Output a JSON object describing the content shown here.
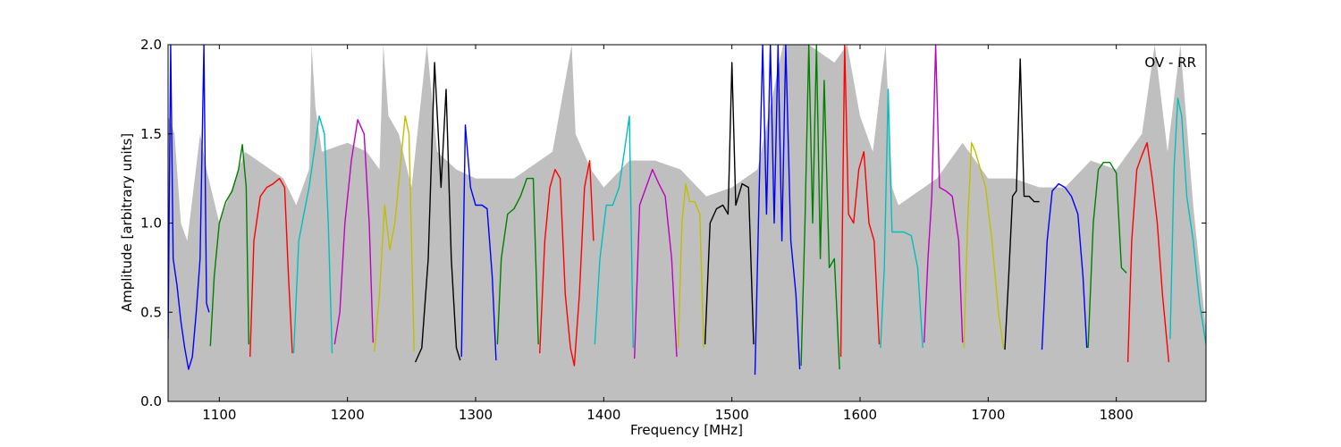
{
  "chart_data": {
    "type": "line",
    "title": "",
    "annotation": "OV - RR",
    "xlabel": "Frequency [MHz]",
    "ylabel": "Amplitude [arbitrary units]",
    "xlim": [
      1060,
      1870
    ],
    "ylim": [
      0.0,
      2.0
    ],
    "xticks": [
      {
        "value": 1100,
        "label": "1100"
      },
      {
        "value": 1200,
        "label": "1200"
      },
      {
        "value": 1300,
        "label": "1300"
      },
      {
        "value": 1400,
        "label": "1400"
      },
      {
        "value": 1500,
        "label": "1500"
      },
      {
        "value": 1600,
        "label": "1600"
      },
      {
        "value": 1700,
        "label": "1700"
      },
      {
        "value": 1800,
        "label": "1800"
      }
    ],
    "yticks": [
      {
        "value": 0.0,
        "label": "0.0"
      },
      {
        "value": 0.5,
        "label": "0.5"
      },
      {
        "value": 1.0,
        "label": "1.0"
      },
      {
        "value": 1.5,
        "label": "1.5"
      },
      {
        "value": 2.0,
        "label": "2.0"
      }
    ],
    "grid": false,
    "background_color": "#bfbfbf",
    "series": [
      {
        "color": "#0000ff",
        "x": [
          1060,
          1062,
          1064,
          1067,
          1070,
          1073,
          1076,
          1079,
          1082,
          1085,
          1088,
          1090,
          1092
        ],
        "y": [
          0.35,
          2.0,
          0.8,
          0.65,
          0.45,
          0.3,
          0.18,
          0.25,
          0.5,
          0.8,
          2.0,
          0.55,
          0.5
        ]
      },
      {
        "color": "#008000",
        "x": [
          1093,
          1096,
          1100,
          1105,
          1110,
          1115,
          1118,
          1121,
          1123
        ],
        "y": [
          0.31,
          0.7,
          1.0,
          1.12,
          1.18,
          1.3,
          1.44,
          1.2,
          0.32
        ]
      },
      {
        "color": "#ff0000",
        "x": [
          1124,
          1127,
          1132,
          1137,
          1142,
          1147,
          1151,
          1154,
          1157
        ],
        "y": [
          0.25,
          0.9,
          1.15,
          1.2,
          1.22,
          1.25,
          1.2,
          0.7,
          0.27
        ]
      },
      {
        "color": "#00bfbf",
        "x": [
          1158,
          1162,
          1166,
          1170,
          1174,
          1178,
          1182,
          1185,
          1188
        ],
        "y": [
          0.27,
          0.9,
          1.05,
          1.2,
          1.4,
          1.6,
          1.5,
          1.0,
          0.27
        ]
      },
      {
        "color": "#bf00bf",
        "x": [
          1190,
          1194,
          1198,
          1203,
          1208,
          1213,
          1217,
          1220
        ],
        "y": [
          0.32,
          0.5,
          1.0,
          1.35,
          1.58,
          1.5,
          1.0,
          0.33
        ]
      },
      {
        "color": "#bfbf00",
        "x": [
          1221,
          1225,
          1229,
          1233,
          1237,
          1241,
          1245,
          1248,
          1252
        ],
        "y": [
          0.28,
          0.6,
          1.1,
          0.85,
          1.0,
          1.3,
          1.6,
          1.5,
          0.28
        ]
      },
      {
        "color": "#000000",
        "x": [
          1253,
          1258,
          1263,
          1268,
          1273,
          1277,
          1281,
          1285,
          1288
        ],
        "y": [
          0.22,
          0.3,
          0.8,
          1.9,
          1.2,
          1.75,
          0.8,
          0.3,
          0.23
        ]
      },
      {
        "color": "#0000ff",
        "x": [
          1289,
          1292,
          1296,
          1300,
          1305,
          1309,
          1313,
          1316
        ],
        "y": [
          0.25,
          1.55,
          1.2,
          1.1,
          1.1,
          1.08,
          0.7,
          0.23
        ]
      },
      {
        "color": "#008000",
        "x": [
          1317,
          1320,
          1325,
          1330,
          1335,
          1340,
          1345,
          1349
        ],
        "y": [
          0.32,
          0.8,
          1.05,
          1.08,
          1.15,
          1.25,
          1.25,
          0.32
        ]
      },
      {
        "color": "#ff0000",
        "x": [
          1350,
          1354,
          1358,
          1362,
          1366,
          1370,
          1374,
          1377,
          1381,
          1385,
          1389,
          1392
        ],
        "y": [
          0.27,
          0.9,
          1.2,
          1.3,
          1.25,
          0.6,
          0.3,
          0.2,
          0.6,
          1.2,
          1.35,
          0.9
        ]
      },
      {
        "color": "#00bfbf",
        "x": [
          1393,
          1397,
          1402,
          1407,
          1412,
          1416,
          1420,
          1423
        ],
        "y": [
          0.32,
          0.8,
          1.1,
          1.1,
          1.2,
          1.4,
          1.6,
          0.3
        ]
      },
      {
        "color": "#bf00bf",
        "x": [
          1424,
          1428,
          1433,
          1438,
          1443,
          1448,
          1453,
          1457
        ],
        "y": [
          0.24,
          1.1,
          1.2,
          1.3,
          1.22,
          1.15,
          0.8,
          0.25
        ]
      },
      {
        "color": "#bfbf00",
        "x": [
          1458,
          1461,
          1464,
          1467,
          1471,
          1475,
          1478
        ],
        "y": [
          0.3,
          1.0,
          1.22,
          1.12,
          1.12,
          1.05,
          0.3
        ]
      },
      {
        "color": "#000000",
        "x": [
          1479,
          1483,
          1488,
          1493,
          1497,
          1500,
          1503,
          1508,
          1513,
          1517
        ],
        "y": [
          0.32,
          1.0,
          1.08,
          1.1,
          1.05,
          1.9,
          1.1,
          1.22,
          1.2,
          0.32
        ]
      },
      {
        "color": "#0000ff",
        "x": [
          1518,
          1521,
          1524,
          1527,
          1530,
          1533,
          1536,
          1539,
          1542,
          1546,
          1550,
          1553
        ],
        "y": [
          0.15,
          1.1,
          2.0,
          1.05,
          2.0,
          1.0,
          2.0,
          0.9,
          2.0,
          0.9,
          0.6,
          0.18
        ]
      },
      {
        "color": "#008000",
        "x": [
          1554,
          1557,
          1560,
          1563,
          1566,
          1569,
          1572,
          1576,
          1580,
          1584
        ],
        "y": [
          0.2,
          1.0,
          2.0,
          1.0,
          2.0,
          0.8,
          1.8,
          0.75,
          0.8,
          0.18
        ]
      },
      {
        "color": "#ff0000",
        "x": [
          1585,
          1588,
          1591,
          1595,
          1599,
          1603,
          1607,
          1611,
          1615
        ],
        "y": [
          0.25,
          2.0,
          1.05,
          1.0,
          1.3,
          1.4,
          1.0,
          0.9,
          0.32
        ]
      },
      {
        "color": "#00bfbf",
        "x": [
          1616,
          1619,
          1622,
          1625,
          1629,
          1634,
          1640,
          1645,
          1649
        ],
        "y": [
          0.3,
          0.75,
          1.75,
          0.95,
          0.95,
          0.95,
          0.93,
          0.75,
          0.3
        ]
      },
      {
        "color": "#bf00bf",
        "x": [
          1650,
          1653,
          1656,
          1659,
          1662,
          1667,
          1672,
          1677,
          1680
        ],
        "y": [
          0.33,
          0.8,
          1.15,
          2.0,
          1.2,
          1.18,
          1.15,
          0.9,
          0.33
        ]
      },
      {
        "color": "#bfbf00",
        "x": [
          1681,
          1684,
          1687,
          1690,
          1694,
          1698,
          1703,
          1708,
          1712
        ],
        "y": [
          0.3,
          1.0,
          1.45,
          1.4,
          1.3,
          1.2,
          0.9,
          0.5,
          0.3
        ]
      },
      {
        "color": "#000000",
        "x": [
          1713,
          1716,
          1719,
          1722,
          1725,
          1728,
          1732,
          1736,
          1740
        ],
        "y": [
          0.29,
          0.7,
          1.15,
          1.18,
          1.92,
          1.15,
          1.15,
          1.12,
          1.12
        ]
      },
      {
        "color": "#0000ff",
        "x": [
          1742,
          1746,
          1750,
          1755,
          1760,
          1765,
          1770,
          1774,
          1777
        ],
        "y": [
          0.29,
          0.9,
          1.18,
          1.22,
          1.2,
          1.15,
          1.05,
          0.7,
          0.3
        ]
      },
      {
        "color": "#008000",
        "x": [
          1778,
          1782,
          1786,
          1790,
          1795,
          1800,
          1804,
          1808
        ],
        "y": [
          0.3,
          1.0,
          1.3,
          1.34,
          1.34,
          1.28,
          0.75,
          0.72
        ]
      },
      {
        "color": "#ff0000",
        "x": [
          1809,
          1812,
          1816,
          1820,
          1824,
          1828,
          1832,
          1836,
          1841
        ],
        "y": [
          0.22,
          0.9,
          1.3,
          1.38,
          1.45,
          1.25,
          1.0,
          0.6,
          0.22
        ]
      },
      {
        "color": "#00bfbf",
        "x": [
          1842,
          1845,
          1848,
          1851,
          1855,
          1860,
          1865,
          1870
        ],
        "y": [
          0.35,
          1.3,
          1.7,
          1.6,
          1.15,
          0.9,
          0.55,
          0.32
        ]
      }
    ],
    "background_envelope": {
      "color": "#bfbfbf",
      "x": [
        1060,
        1065,
        1070,
        1075,
        1080,
        1085,
        1090,
        1100,
        1120,
        1150,
        1160,
        1170,
        1172,
        1175,
        1180,
        1200,
        1215,
        1225,
        1228,
        1232,
        1240,
        1250,
        1262,
        1270,
        1285,
        1300,
        1330,
        1360,
        1375,
        1378,
        1390,
        1400,
        1420,
        1440,
        1460,
        1480,
        1500,
        1520,
        1540,
        1560,
        1580,
        1590,
        1600,
        1610,
        1620,
        1625,
        1630,
        1660,
        1680,
        1690,
        1700,
        1720,
        1740,
        1760,
        1780,
        1800,
        1820,
        1830,
        1840,
        1850,
        1860,
        1870
      ],
      "y": [
        1.6,
        1.5,
        1.0,
        0.9,
        1.2,
        1.5,
        1.3,
        1.0,
        1.4,
        1.25,
        1.1,
        1.3,
        2.0,
        1.65,
        1.4,
        1.45,
        1.4,
        1.3,
        2.0,
        1.6,
        1.5,
        1.2,
        2.0,
        1.4,
        1.3,
        1.25,
        1.25,
        1.4,
        2.0,
        1.5,
        1.3,
        1.2,
        1.35,
        1.35,
        1.3,
        1.15,
        1.2,
        1.3,
        2.0,
        2.0,
        1.9,
        2.0,
        1.6,
        1.4,
        2.0,
        1.2,
        1.1,
        1.25,
        1.45,
        1.35,
        1.25,
        1.25,
        1.2,
        1.2,
        1.35,
        1.3,
        1.5,
        2.0,
        1.4,
        2.0,
        1.1,
        0.4
      ]
    }
  }
}
